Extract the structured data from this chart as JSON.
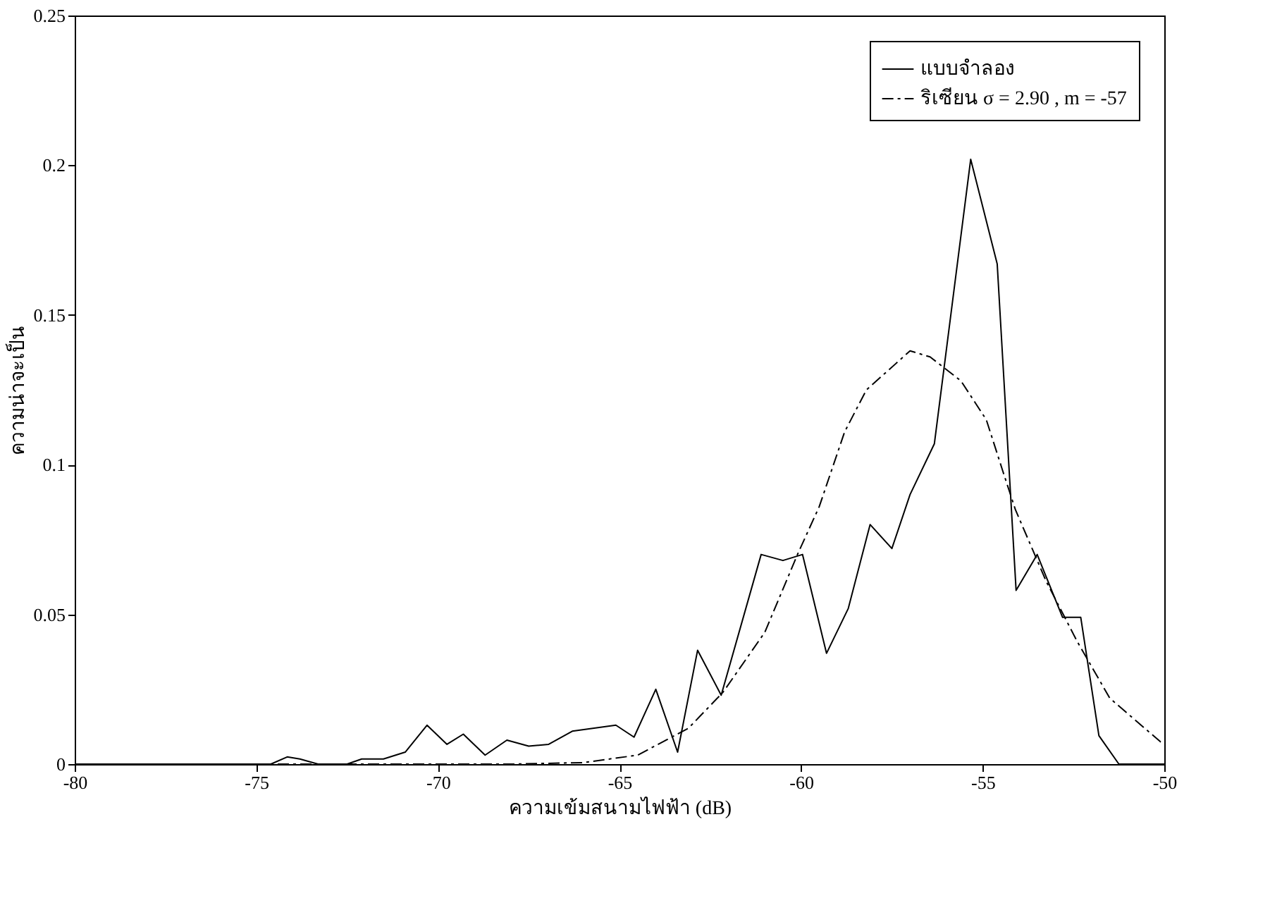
{
  "chart_data": {
    "type": "line",
    "xlabel": "ความเข้มสนามไฟฟ้า (dB)",
    "ylabel": "ความน่าจะเป็น",
    "xlim": [
      -80,
      -50
    ],
    "xticks": [
      -80,
      -75,
      -70,
      -65,
      -60,
      -55,
      -50
    ],
    "ylim": [
      0,
      0.25
    ],
    "yticks": [
      0,
      0.05,
      0.1,
      0.15,
      0.2,
      0.25
    ],
    "grid": false,
    "legend": "top right",
    "marker": "none",
    "series": [
      {
        "name": "แบบจำลอง",
        "color": "#000000",
        "line_style": "solid",
        "x": [
          -80,
          -74.6,
          -74.15,
          -73.8,
          -73.3,
          -72.5,
          -72.1,
          -71.5,
          -70.9,
          -70.3,
          -69.75,
          -69.3,
          -68.7,
          -68.1,
          -67.5,
          -66.95,
          -66.3,
          -65.7,
          -65.1,
          -64.6,
          -64.0,
          -63.4,
          -62.85,
          -62.2,
          -61.1,
          -60.5,
          -59.96,
          -59.3,
          -58.7,
          -58.1,
          -57.5,
          -57.0,
          -56.33,
          -55.33,
          -54.6,
          -54.08,
          -53.5,
          -52.8,
          -52.3,
          -51.8,
          -51.25,
          -50
        ],
        "values": [
          0,
          0,
          0.0024,
          0.0017,
          0,
          0,
          0.0017,
          0.0017,
          0.004,
          0.013,
          0.0066,
          0.01,
          0.003,
          0.008,
          0.006,
          0.0066,
          0.011,
          0.012,
          0.013,
          0.009,
          0.025,
          0.004,
          0.038,
          0.023,
          0.07,
          0.068,
          0.07,
          0.037,
          0.052,
          0.08,
          0.072,
          0.09,
          0.107,
          0.202,
          0.167,
          0.058,
          0.07,
          0.049,
          0.049,
          0.0095,
          0,
          0
        ]
      },
      {
        "name": "ริเซียน σ = 2.90 , m = -57",
        "color": "#000000",
        "line_style": "dashed",
        "x": [
          -80,
          -68,
          -66,
          -64.5,
          -63.1,
          -62.15,
          -61.0,
          -60.1,
          -59.5,
          -58.8,
          -58.2,
          -57.0,
          -56.45,
          -55.6,
          -54.9,
          -54.45,
          -54.1,
          -53.25,
          -52.4,
          -51.5,
          -50.1,
          -50
        ],
        "values": [
          0,
          0,
          0.0005,
          0.003,
          0.012,
          0.024,
          0.044,
          0.07,
          0.086,
          0.111,
          0.125,
          0.138,
          0.136,
          0.128,
          0.115,
          0.098,
          0.085,
          0.061,
          0.041,
          0.022,
          0.0074,
          0.007
        ]
      }
    ]
  }
}
